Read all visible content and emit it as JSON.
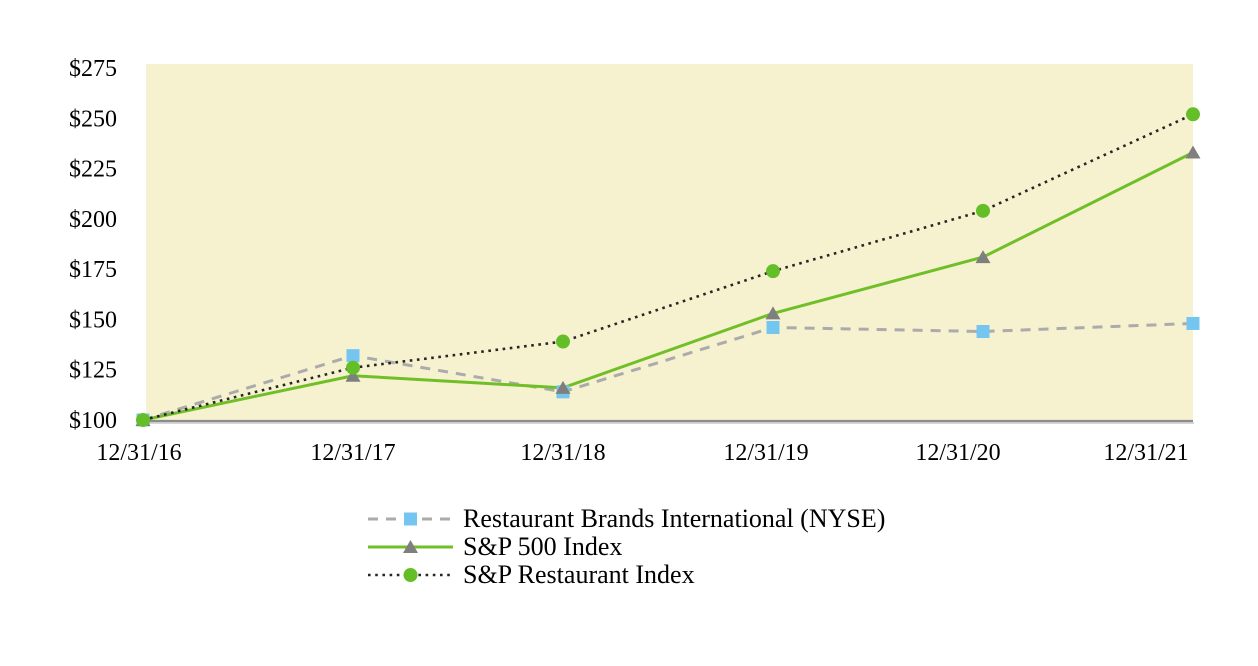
{
  "chart_data": {
    "type": "line",
    "title": "",
    "xlabel": "",
    "ylabel": "",
    "x_labels": [
      "12/31/16",
      "12/31/17",
      "12/31/18",
      "12/31/19",
      "12/31/20",
      "12/31/21"
    ],
    "y_tick_labels": [
      "$275",
      "$250",
      "$225",
      "$200",
      "$175",
      "$150",
      "$125",
      "$100"
    ],
    "y_tick_values": [
      275,
      250,
      225,
      200,
      175,
      150,
      125,
      100
    ],
    "ylim": [
      100,
      277
    ],
    "grid": false,
    "legend_position": "bottom",
    "plot_bg_color": "#F6F2D0",
    "axis_line_color": "#8C8C8C",
    "axis_shadow_color": "#C9C9C9",
    "series": [
      {
        "name": "Restaurant Brands International (NYSE)",
        "values": [
          100,
          132,
          114,
          146,
          144,
          148
        ],
        "line_style": "dashed",
        "line_color": "#ABABAB",
        "marker": "square",
        "marker_color": "#74C5F0"
      },
      {
        "name": "S&P 500 Index",
        "values": [
          100,
          122,
          116,
          153,
          181,
          233
        ],
        "line_style": "solid",
        "line_color": "#70BF28",
        "marker": "triangle",
        "marker_color": "#7F7F7F"
      },
      {
        "name": "S&P Restaurant Index",
        "values": [
          100,
          126,
          139,
          174,
          204,
          252
        ],
        "line_style": "dotted",
        "line_color": "#262626",
        "marker": "circle",
        "marker_color": "#64BE28"
      }
    ]
  }
}
